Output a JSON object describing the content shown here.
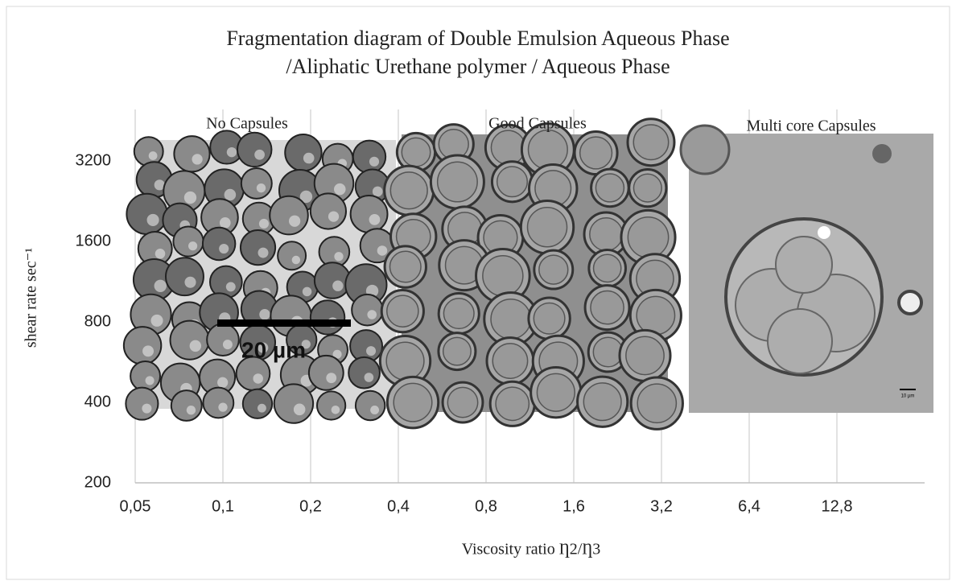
{
  "chart_data": {
    "type": "scatter",
    "title": "Fragmentation diagram of Double Emulsion Aqueous Phase",
    "subtitle": "/Aliphatic Urethane polymer / Aqueous Phase",
    "x_label": "Viscosity ratio Ƞ2/Ƞ3",
    "y_label": "shear rate sec⁻¹",
    "x_scale": "log",
    "y_scale": "log",
    "xlim": [
      0.05,
      25.6
    ],
    "ylim": [
      200,
      5000
    ],
    "xticks": [
      {
        "value": 0.05,
        "label": "0,05"
      },
      {
        "value": 0.1,
        "label": "0,1"
      },
      {
        "value": 0.2,
        "label": "0,2"
      },
      {
        "value": 0.4,
        "label": "0,4"
      },
      {
        "value": 0.8,
        "label": "0,8"
      },
      {
        "value": 1.6,
        "label": "1,6"
      },
      {
        "value": 3.2,
        "label": "3,2"
      },
      {
        "value": 6.4,
        "label": "6,4"
      },
      {
        "value": 12.8,
        "label": "12,8"
      }
    ],
    "yticks": [
      200,
      400,
      800,
      1600,
      3200
    ],
    "grid": "x",
    "annotations": [
      "No Capsules",
      "Good Capsules",
      "Multi core Capsules",
      "20 µm",
      "10 µm"
    ]
  }
}
